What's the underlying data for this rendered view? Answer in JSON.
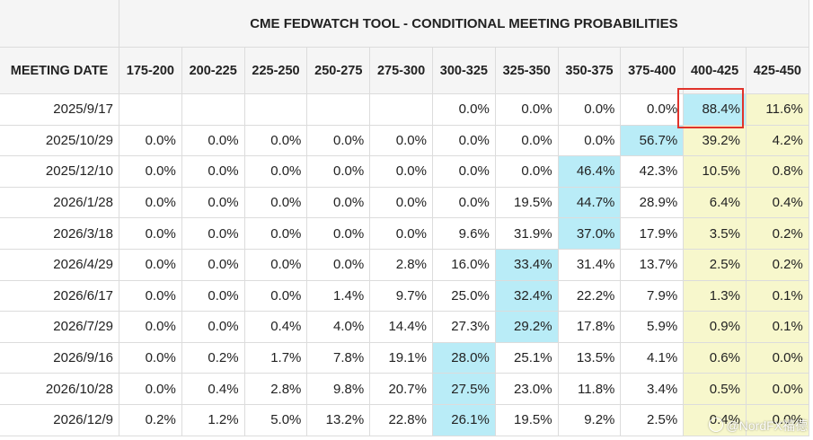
{
  "chart_data": {
    "type": "table",
    "title": "CME FEDWATCH TOOL - CONDITIONAL MEETING PROBABILITIES",
    "row_header_label": "MEETING DATE",
    "columns": [
      "175-200",
      "200-225",
      "225-250",
      "250-275",
      "275-300",
      "300-325",
      "325-350",
      "350-375",
      "375-400",
      "400-425",
      "425-450"
    ],
    "rows": [
      {
        "date": "2025/9/17",
        "values": [
          "",
          "",
          "",
          "",
          "",
          "0.0%",
          "0.0%",
          "0.0%",
          "0.0%",
          "88.4%",
          "11.6%"
        ]
      },
      {
        "date": "2025/10/29",
        "values": [
          "0.0%",
          "0.0%",
          "0.0%",
          "0.0%",
          "0.0%",
          "0.0%",
          "0.0%",
          "0.0%",
          "56.7%",
          "39.2%",
          "4.2%"
        ]
      },
      {
        "date": "2025/12/10",
        "values": [
          "0.0%",
          "0.0%",
          "0.0%",
          "0.0%",
          "0.0%",
          "0.0%",
          "0.0%",
          "46.4%",
          "42.3%",
          "10.5%",
          "0.8%"
        ]
      },
      {
        "date": "2026/1/28",
        "values": [
          "0.0%",
          "0.0%",
          "0.0%",
          "0.0%",
          "0.0%",
          "0.0%",
          "19.5%",
          "44.7%",
          "28.9%",
          "6.4%",
          "0.4%"
        ]
      },
      {
        "date": "2026/3/18",
        "values": [
          "0.0%",
          "0.0%",
          "0.0%",
          "0.0%",
          "0.0%",
          "9.6%",
          "31.9%",
          "37.0%",
          "17.9%",
          "3.5%",
          "0.2%"
        ]
      },
      {
        "date": "2026/4/29",
        "values": [
          "0.0%",
          "0.0%",
          "0.0%",
          "0.0%",
          "2.8%",
          "16.0%",
          "33.4%",
          "31.4%",
          "13.7%",
          "2.5%",
          "0.2%"
        ]
      },
      {
        "date": "2026/6/17",
        "values": [
          "0.0%",
          "0.0%",
          "0.0%",
          "1.4%",
          "9.7%",
          "25.0%",
          "32.4%",
          "22.2%",
          "7.9%",
          "1.3%",
          "0.1%"
        ]
      },
      {
        "date": "2026/7/29",
        "values": [
          "0.0%",
          "0.0%",
          "0.4%",
          "4.0%",
          "14.4%",
          "27.3%",
          "29.2%",
          "17.8%",
          "5.9%",
          "0.9%",
          "0.1%"
        ]
      },
      {
        "date": "2026/9/16",
        "values": [
          "0.0%",
          "0.2%",
          "1.7%",
          "7.8%",
          "19.1%",
          "28.0%",
          "25.1%",
          "13.5%",
          "4.1%",
          "0.6%",
          "0.0%"
        ]
      },
      {
        "date": "2026/10/28",
        "values": [
          "0.0%",
          "0.4%",
          "2.8%",
          "9.8%",
          "20.7%",
          "27.5%",
          "23.0%",
          "11.8%",
          "3.4%",
          "0.5%",
          "0.0%"
        ]
      },
      {
        "date": "2026/12/9",
        "values": [
          "0.2%",
          "1.2%",
          "5.0%",
          "13.2%",
          "22.8%",
          "26.1%",
          "19.5%",
          "9.2%",
          "2.5%",
          "0.4%",
          "0.0%"
        ]
      }
    ],
    "max_cell_color": "#b9ecf7",
    "at_or_above_current_color": "#f7f7cc",
    "default_cell_color": "#ffffff",
    "highlight_border_color": "#e0332b",
    "highlighted_cell": {
      "row": 0,
      "col": 9
    }
  },
  "watermark": {
    "text": "@NordFX福德"
  }
}
